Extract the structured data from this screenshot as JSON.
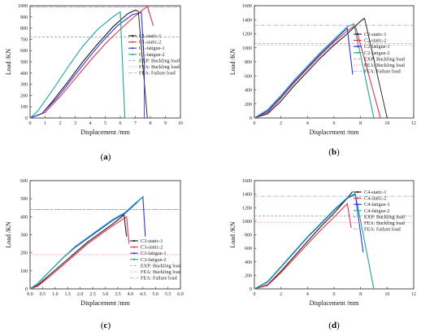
{
  "colors": {
    "static1": "#1a1a1a",
    "static2": "#e8304a",
    "fatigue1": "#2a36d6",
    "fatigue2": "#1aa6a0",
    "exp_buckling": "#999999",
    "fea_buckling": "#ea8a8a",
    "fea_failure": "#9a9ad0"
  },
  "chart_data": [
    {
      "type": "line",
      "panel_label": "a",
      "xlabel": "Displacement /mm",
      "ylabel": "Load /KN",
      "xlim": [
        0,
        10
      ],
      "ylim": [
        0,
        1000
      ],
      "xticks": [
        "0",
        "1",
        "2",
        "3",
        "4",
        "5",
        "6",
        "7",
        "8",
        "9",
        "10"
      ],
      "yticks": [
        "0",
        "100",
        "200",
        "300",
        "400",
        "500",
        "600",
        "700",
        "800",
        "900",
        "1000"
      ],
      "legend_position": "right",
      "series": [
        {
          "name": "C1-static-1",
          "key": "static1",
          "x": [
            0,
            0.8,
            1.5,
            2.5,
            3.5,
            4.5,
            5.5,
            6.5,
            7.0,
            7.2
          ],
          "y": [
            0,
            40,
            150,
            320,
            500,
            660,
            810,
            930,
            960,
            950
          ]
        },
        {
          "name": "C1-static-2",
          "key": "static2",
          "x": [
            0,
            1.0,
            2.0,
            3.0,
            4.0,
            5.0,
            6.0,
            7.0,
            7.8,
            8.2
          ],
          "y": [
            0,
            50,
            190,
            350,
            510,
            660,
            790,
            910,
            995,
            820
          ]
        },
        {
          "name": "C1-fatigue-1",
          "key": "fatigue1",
          "x": [
            0,
            0.8,
            1.8,
            2.8,
            3.8,
            4.8,
            5.8,
            6.8,
            7.4,
            7.6
          ],
          "y": [
            0,
            40,
            180,
            350,
            520,
            680,
            820,
            920,
            940,
            480
          ]
        },
        {
          "name": "C1-fatigue-2",
          "key": "fatigue2",
          "x": [
            0,
            0.5,
            1.5,
            2.5,
            3.5,
            4.5,
            5.5,
            6.0,
            6.3
          ],
          "y": [
            0,
            60,
            250,
            450,
            640,
            790,
            900,
            945,
            0
          ]
        }
      ],
      "reference_lines": [
        {
          "name": "EXP: Buckling load",
          "key": "exp_buckling",
          "y": 720
        },
        {
          "name": "FEA: Buckling load",
          "key": "fea_buckling",
          "y": 990
        },
        {
          "name": "FEA: Failure load",
          "key": "fea_failure",
          "y": 990
        }
      ],
      "drops": [
        {
          "key": "static1",
          "x": [
            7.2,
            7.8
          ],
          "y": [
            950,
            0
          ]
        },
        {
          "key": "fatigue1",
          "x": [
            7.6,
            7.6
          ],
          "y": [
            480,
            0
          ]
        },
        {
          "key": "fatigue2",
          "x": [
            6.3,
            6.8
          ],
          "y": [
            0,
            0
          ]
        }
      ]
    },
    {
      "type": "line",
      "panel_label": "b",
      "xlabel": "Displacement /mm",
      "ylabel": "Load /KN",
      "xlim": [
        0,
        12
      ],
      "ylim": [
        0,
        1600
      ],
      "xticks": [
        "0",
        "2",
        "4",
        "6",
        "8",
        "10",
        "12"
      ],
      "yticks": [
        "0",
        "200",
        "400",
        "600",
        "800",
        "1000",
        "1200",
        "1400",
        "1600"
      ],
      "legend_position": "right",
      "series": [
        {
          "name": "C2-static-1",
          "key": "static1",
          "x": [
            0,
            1.0,
            2.0,
            3.0,
            4.0,
            5.0,
            6.0,
            7.0,
            8.0,
            8.3
          ],
          "y": [
            0,
            60,
            240,
            460,
            660,
            860,
            1040,
            1200,
            1380,
            1420
          ]
        },
        {
          "name": "C2-static-2",
          "key": "static2",
          "x": [
            0,
            1.0,
            2.0,
            3.0,
            4.0,
            5.0,
            6.0,
            7.0,
            7.6,
            9.5
          ],
          "y": [
            0,
            80,
            280,
            500,
            700,
            900,
            1080,
            1240,
            1320,
            0
          ]
        },
        {
          "name": "C2-fatigue-1",
          "key": "fatigue1",
          "x": [
            0,
            1.0,
            2.0,
            3.0,
            4.0,
            5.0,
            6.0,
            7.0,
            7.4
          ],
          "y": [
            0,
            100,
            300,
            520,
            720,
            920,
            1100,
            1280,
            620
          ]
        },
        {
          "name": "C2-fatigue-2",
          "key": "fatigue2",
          "x": [
            0,
            1.0,
            2.0,
            3.0,
            4.0,
            5.0,
            6.0,
            7.0,
            7.5,
            9.0
          ],
          "y": [
            0,
            120,
            320,
            540,
            740,
            940,
            1120,
            1300,
            1340,
            0
          ]
        }
      ],
      "reference_lines": [
        {
          "name": "EXP: Buckling load",
          "key": "exp_buckling",
          "y": 1060
        },
        {
          "name": "FEA: Buckling load",
          "key": "fea_buckling",
          "y": 1040
        },
        {
          "name": "FEA: Failure load",
          "key": "fea_failure",
          "y": 1320
        }
      ],
      "drops": [
        {
          "key": "static1",
          "x": [
            8.3,
            10.0
          ],
          "y": [
            1420,
            0
          ]
        }
      ]
    },
    {
      "type": "line",
      "panel_label": "c",
      "xlabel": "Displacement /mm",
      "ylabel": "Load /KN",
      "xlim": [
        0,
        6
      ],
      "ylim": [
        0,
        600
      ],
      "xticks": [
        "0.0",
        "0.5",
        "1.0",
        "1.5",
        "2.0",
        "2.5",
        "3.0",
        "3.5",
        "4.0",
        "4.5",
        "5.0",
        "5.5",
        "6.0"
      ],
      "yticks": [
        "0",
        "100",
        "200",
        "300",
        "400",
        "500",
        "600"
      ],
      "legend_position": "right",
      "series": [
        {
          "name": "C3-static-1",
          "key": "static1",
          "x": [
            0,
            0.3,
            0.8,
            1.3,
            1.8,
            2.3,
            2.8,
            3.3,
            3.75,
            3.85
          ],
          "y": [
            0,
            20,
            80,
            140,
            200,
            260,
            310,
            360,
            410,
            290
          ]
        },
        {
          "name": "C3-static-2",
          "key": "static2",
          "x": [
            0,
            0.3,
            0.8,
            1.3,
            1.8,
            2.3,
            2.8,
            3.3,
            3.85,
            3.95
          ],
          "y": [
            0,
            15,
            70,
            130,
            190,
            250,
            300,
            350,
            400,
            250
          ]
        },
        {
          "name": "C3-fatigue-1",
          "key": "fatigue1",
          "x": [
            0,
            0.3,
            0.8,
            1.3,
            1.8,
            2.3,
            2.8,
            3.3,
            3.8,
            4.2,
            4.5,
            4.6
          ],
          "y": [
            0,
            30,
            100,
            170,
            230,
            280,
            330,
            380,
            420,
            470,
            510,
            290
          ]
        },
        {
          "name": "C3-fatigue-2",
          "key": "fatigue2",
          "x": [
            0,
            0.3,
            0.8,
            1.3,
            1.8,
            2.3,
            2.8,
            3.3,
            3.8,
            4.2,
            4.5
          ],
          "y": [
            0,
            30,
            100,
            170,
            235,
            285,
            335,
            385,
            425,
            475,
            510
          ]
        }
      ],
      "reference_lines": [
        {
          "name": "EXP: Buckling load",
          "key": "exp_buckling",
          "y": 440
        },
        {
          "name": "FEA: Buckling load",
          "key": "fea_buckling",
          "y": 190
        },
        {
          "name": "FEA: Failure load",
          "key": "fea_failure",
          "y": 440
        }
      ],
      "drops": []
    },
    {
      "type": "line",
      "panel_label": "d",
      "xlabel": "Displacement /mm",
      "ylabel": "Load /KN",
      "xlim": [
        0,
        12
      ],
      "ylim": [
        0,
        1600
      ],
      "xticks": [
        "0",
        "2",
        "4",
        "6",
        "8",
        "10",
        "12"
      ],
      "yticks": [
        "0",
        "200",
        "400",
        "600",
        "800",
        "1000",
        "1200",
        "1400",
        "1600"
      ],
      "legend_position": "right",
      "series": [
        {
          "name": "C4-static-1",
          "key": "static1",
          "x": [
            0,
            1.0,
            2.0,
            3.0,
            4.0,
            5.0,
            6.0,
            7.0,
            7.4
          ],
          "y": [
            0,
            60,
            260,
            480,
            700,
            920,
            1120,
            1340,
            1440
          ]
        },
        {
          "name": "C4-static-2",
          "key": "static2",
          "x": [
            0,
            1.0,
            2.0,
            3.0,
            4.0,
            5.0,
            6.0,
            7.0,
            7.3
          ],
          "y": [
            0,
            50,
            240,
            450,
            660,
            870,
            1060,
            1260,
            900
          ]
        },
        {
          "name": "C4-fatigue-1",
          "key": "fatigue1",
          "x": [
            0,
            1.0,
            2.0,
            3.0,
            4.0,
            5.0,
            6.0,
            7.0,
            7.6,
            8.2
          ],
          "y": [
            0,
            100,
            320,
            540,
            760,
            960,
            1160,
            1340,
            1400,
            540
          ]
        },
        {
          "name": "C4-fatigue-2",
          "key": "fatigue2",
          "x": [
            0,
            1.0,
            2.0,
            3.0,
            4.0,
            5.0,
            6.0,
            7.0,
            7.6,
            9.0
          ],
          "y": [
            0,
            110,
            330,
            550,
            770,
            970,
            1170,
            1350,
            1410,
            0
          ]
        }
      ],
      "reference_lines": [
        {
          "name": "EXP: Buckling load",
          "key": "exp_buckling",
          "y": 1080
        },
        {
          "name": "FEA: Buckling load",
          "key": "fea_buckling",
          "y": 980
        },
        {
          "name": "FEA: Failure load",
          "key": "fea_failure",
          "y": 1370
        }
      ],
      "drops": []
    }
  ]
}
